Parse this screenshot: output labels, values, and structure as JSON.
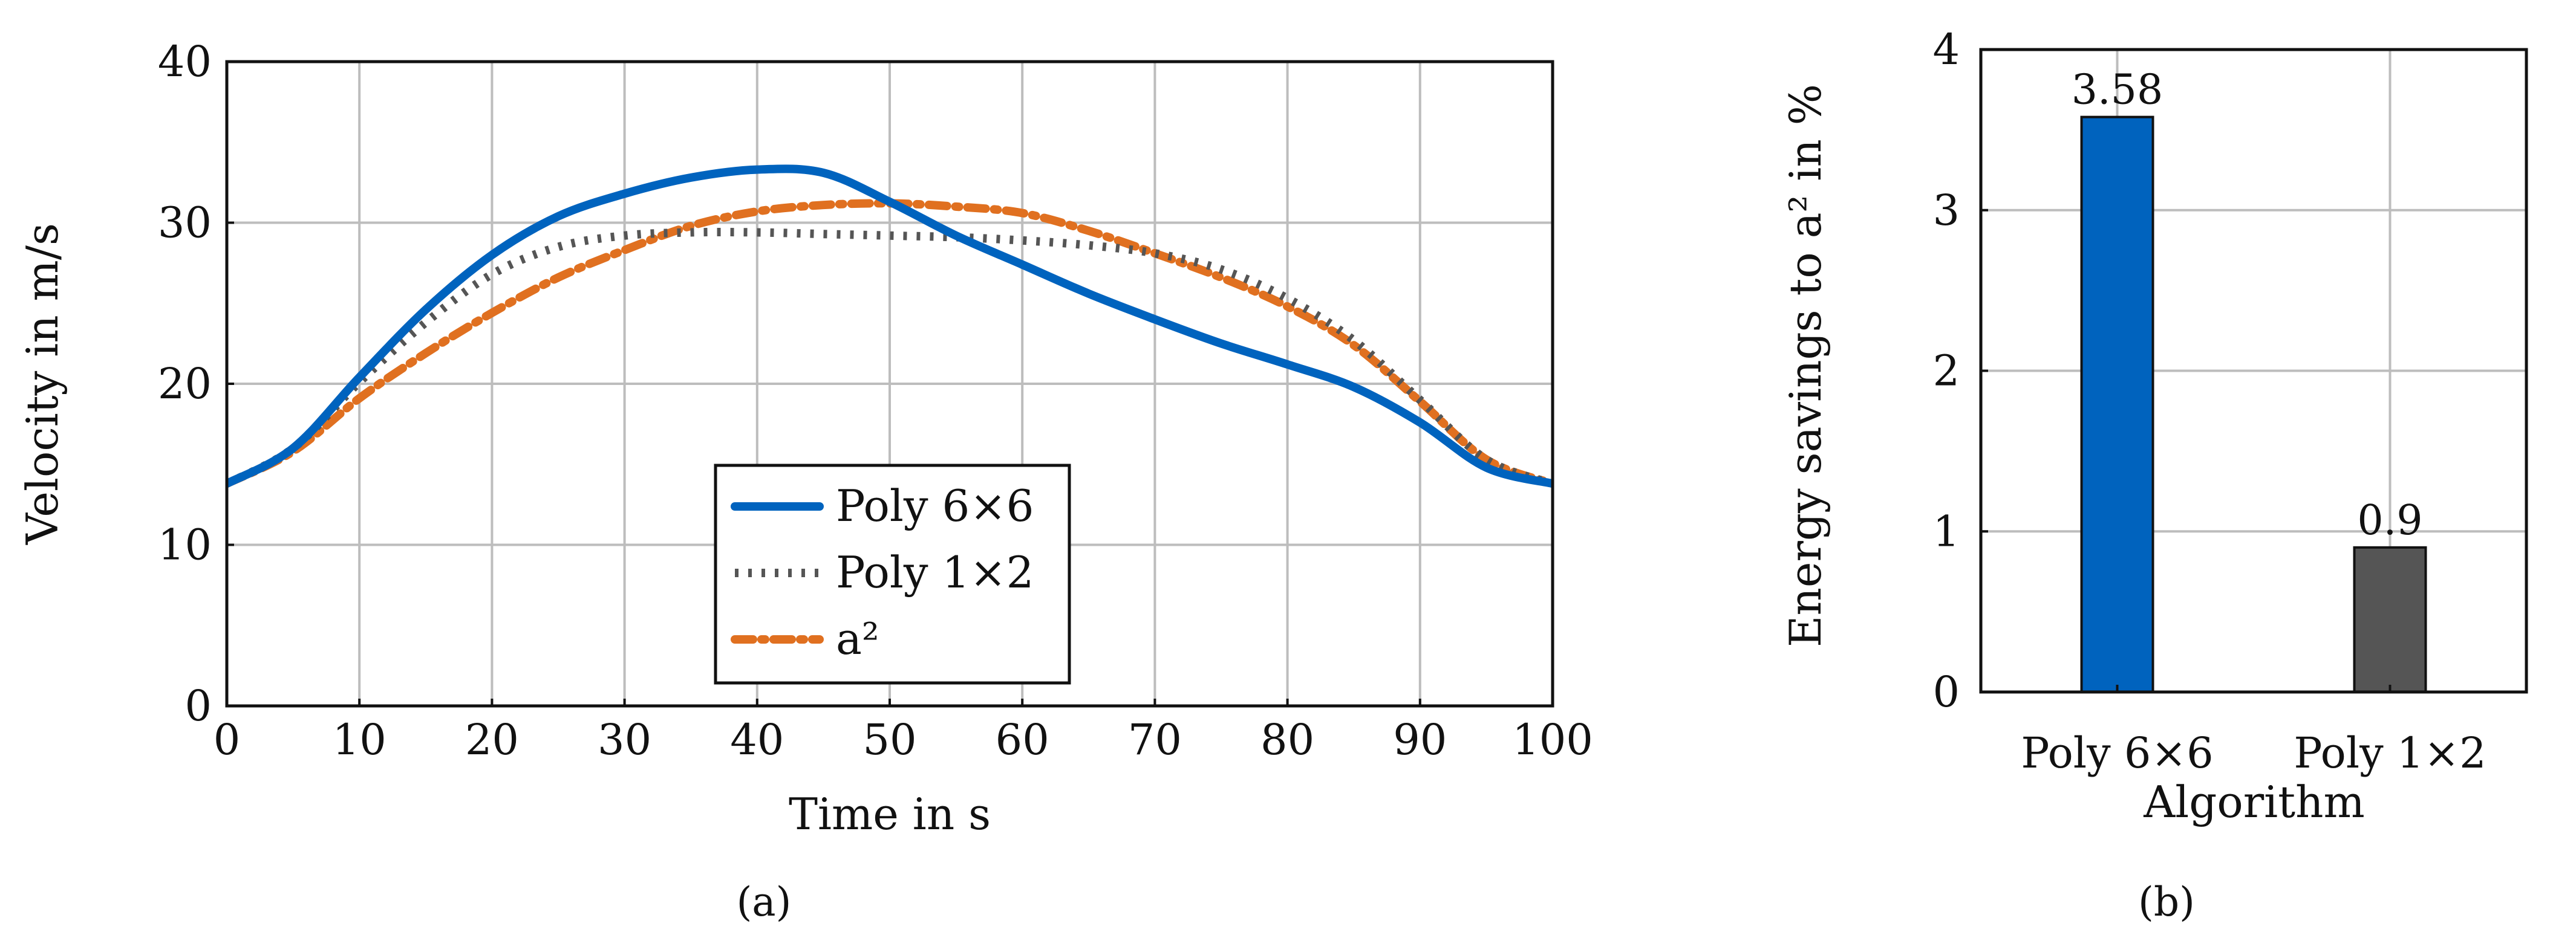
{
  "chart_data": [
    {
      "id": "a",
      "type": "line",
      "panel_label": "(a)",
      "title": "",
      "xlabel": "Time in s",
      "ylabel": "Velocity in m/s",
      "xlim": [
        0,
        100
      ],
      "ylim": [
        0,
        40
      ],
      "xticks": [
        0,
        10,
        20,
        30,
        40,
        50,
        60,
        70,
        80,
        90,
        100
      ],
      "yticks": [
        0,
        10,
        20,
        30,
        40
      ],
      "grid": true,
      "legend_position": "lower-center",
      "series": [
        {
          "name": "Poly 6×6",
          "color": "#0063be",
          "style": "solid",
          "x": [
            0,
            5,
            10,
            15,
            20,
            25,
            30,
            35,
            40,
            45,
            50,
            55,
            60,
            65,
            70,
            75,
            80,
            85,
            90,
            95,
            100
          ],
          "y": [
            13.8,
            16,
            20.4,
            24.6,
            28,
            30.4,
            31.8,
            32.8,
            33.3,
            33.1,
            31.3,
            29.2,
            27.4,
            25.6,
            24,
            22.5,
            21.2,
            19.8,
            17.6,
            14.8,
            13.8
          ]
        },
        {
          "name": "Poly 1×2",
          "color": "#555555",
          "style": "dotted",
          "x": [
            0,
            5,
            10,
            15,
            20,
            25,
            30,
            35,
            40,
            45,
            50,
            55,
            60,
            65,
            70,
            75,
            80,
            85,
            90,
            95,
            100
          ],
          "y": [
            13.8,
            16,
            20.1,
            23.8,
            26.8,
            28.5,
            29.2,
            29.4,
            29.4,
            29.3,
            29.2,
            29.1,
            28.9,
            28.6,
            28.1,
            27.1,
            25.3,
            22.7,
            19,
            15.3,
            13.8
          ]
        },
        {
          "name": "a²",
          "color": "#e07020",
          "style": "dashdot",
          "x": [
            0,
            5,
            10,
            15,
            20,
            25,
            30,
            35,
            40,
            45,
            50,
            55,
            60,
            65,
            70,
            75,
            80,
            85,
            90,
            95,
            100
          ],
          "y": [
            13.8,
            15.8,
            19.1,
            21.9,
            24.4,
            26.6,
            28.3,
            29.8,
            30.7,
            31.1,
            31.2,
            31,
            30.6,
            29.5,
            28.1,
            26.6,
            24.8,
            22.4,
            18.9,
            15.3,
            13.8
          ]
        }
      ]
    },
    {
      "id": "b",
      "type": "bar",
      "panel_label": "(b)",
      "title": "",
      "xlabel": "Algorithm",
      "ylabel": "Energy savings to a² in %",
      "ylim": [
        0,
        4
      ],
      "yticks": [
        0,
        1,
        2,
        3,
        4
      ],
      "grid": true,
      "categories": [
        "Poly 6×6",
        "Poly 1×2"
      ],
      "values": [
        3.58,
        0.9
      ],
      "value_labels": [
        "3.58",
        "0.9"
      ],
      "colors": [
        "#0063be",
        "#555555"
      ]
    }
  ]
}
